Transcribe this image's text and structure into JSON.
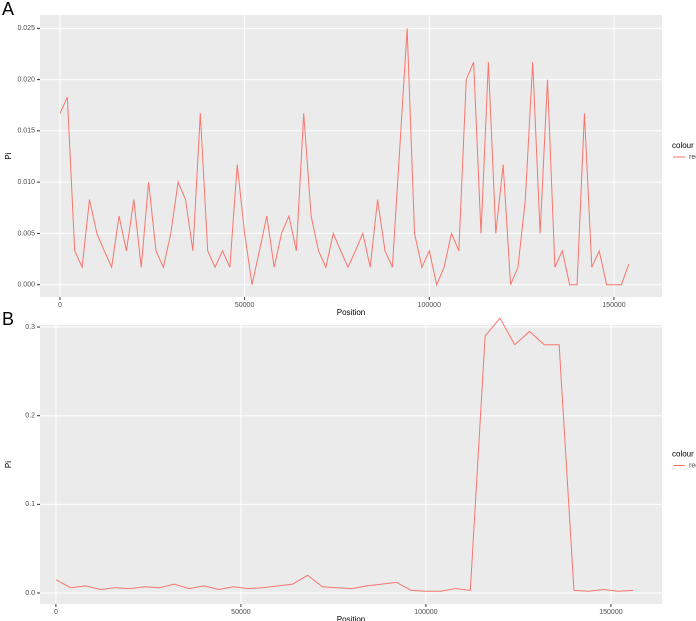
{
  "chart_data": [
    {
      "type": "line",
      "label": "A",
      "xlabel": "Position",
      "ylabel": "Pi",
      "legend_title": "colour",
      "legend": "right",
      "xlim": [
        -5400,
        163000
      ],
      "ylim": [
        -0.0012,
        0.0263
      ],
      "xticks": [
        0,
        50000,
        100000,
        150000
      ],
      "yticks": [
        {
          "value": 0,
          "label": "0.000"
        },
        {
          "value": 0.005,
          "label": "0.005"
        },
        {
          "value": 0.01,
          "label": "0.010"
        },
        {
          "value": 0.015,
          "label": "0.015"
        },
        {
          "value": 0.02,
          "label": "0.020"
        },
        {
          "value": 0.025,
          "label": "0.025"
        }
      ],
      "grid": true,
      "x": [
        0,
        2000,
        4000,
        6000,
        8000,
        10000,
        12000,
        14000,
        16000,
        18000,
        20000,
        22000,
        24000,
        26000,
        28000,
        30000,
        32000,
        34000,
        36000,
        38000,
        40000,
        42000,
        44000,
        46000,
        48000,
        50000,
        52000,
        54000,
        56000,
        58000,
        60000,
        62000,
        64000,
        66000,
        68000,
        70000,
        72000,
        74000,
        76000,
        78000,
        80000,
        82000,
        84000,
        86000,
        88000,
        90000,
        92000,
        94000,
        96000,
        98000,
        100000,
        102000,
        104000,
        106000,
        108000,
        110000,
        112000,
        114000,
        116000,
        118000,
        120000,
        122000,
        124000,
        126000,
        128000,
        130000,
        132000,
        134000,
        136000,
        138000,
        140000,
        142000,
        144000,
        146000,
        148000,
        150000,
        152000,
        154000
      ],
      "series": [
        {
          "name": "red",
          "color": "#f8766d",
          "values": [
            0.0167,
            0.0183,
            0.0033,
            0.0017,
            0.0083,
            0.005,
            0.0033,
            0.0017,
            0.0067,
            0.0033,
            0.0083,
            0.0017,
            0.01,
            0.0033,
            0.0017,
            0.005,
            0.01,
            0.0083,
            0.0033,
            0.0167,
            0.0033,
            0.0017,
            0.0033,
            0.0017,
            0.0117,
            0.005,
            0,
            0.0033,
            0.0067,
            0.0017,
            0.005,
            0.0067,
            0.0033,
            0.0167,
            0.0067,
            0.0033,
            0.0017,
            0.005,
            0.0033,
            0.0017,
            0.0033,
            0.005,
            0.0017,
            0.0083,
            0.0033,
            0.0017,
            0.0133,
            0.025,
            0.005,
            0.0017,
            0.0033,
            0,
            0.0017,
            0.005,
            0.0033,
            0.02,
            0.0217,
            0.005,
            0.0217,
            0.005,
            0.0117,
            0,
            0.0017,
            0.0083,
            0.0217,
            0.005,
            0.02,
            0.0017,
            0.0033,
            0,
            0,
            0.0167,
            0.0017,
            0.0033,
            0,
            0,
            0,
            0.002
          ]
        }
      ]
    },
    {
      "type": "line",
      "label": "B",
      "xlabel": "Position",
      "ylabel": "Pi",
      "legend_title": "colour",
      "legend": "right",
      "xlim": [
        -4300,
        163800
      ],
      "ylim": [
        -0.0124,
        0.3023
      ],
      "xticks": [
        0,
        50000,
        100000,
        150000
      ],
      "yticks": [
        {
          "value": 0,
          "label": "0.0"
        },
        0.1,
        0.2,
        0.3
      ],
      "grid": true,
      "x": [
        0,
        4000,
        8000,
        12000,
        16000,
        20000,
        24000,
        28000,
        32000,
        36000,
        40000,
        44000,
        48000,
        52000,
        56000,
        60000,
        64000,
        68000,
        72000,
        76000,
        80000,
        84000,
        88000,
        92000,
        96000,
        100000,
        104000,
        108000,
        112000,
        116000,
        120000,
        124000,
        128000,
        132000,
        136000,
        140000,
        144000,
        148000,
        152000,
        156000
      ],
      "series": [
        {
          "name": "red",
          "color": "#f8766d",
          "values": [
            0.015,
            0.006,
            0.008,
            0.004,
            0.006,
            0.005,
            0.007,
            0.006,
            0.01,
            0.005,
            0.008,
            0.004,
            0.007,
            0.005,
            0.006,
            0.008,
            0.01,
            0.02,
            0.007,
            0.006,
            0.005,
            0.008,
            0.01,
            0.012,
            0.003,
            0.002,
            0.002,
            0.005,
            0.003,
            0.29,
            0.31,
            0.28,
            0.295,
            0.28,
            0.28,
            0.003,
            0.002,
            0.004,
            0.002,
            0.003
          ]
        }
      ]
    }
  ]
}
